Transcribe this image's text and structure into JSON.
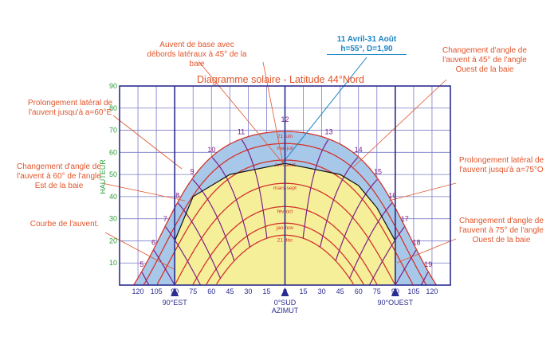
{
  "title": "Diagramme solaire - Latitude 44°Nord",
  "y_axis_label": "HAUTEUR",
  "x_axis_label": "AZIMUT",
  "y_ticks": [
    "10",
    "20",
    "30",
    "40",
    "50",
    "60",
    "70",
    "80",
    "90"
  ],
  "x_ticks": [
    "120",
    "105",
    "90",
    "75",
    "60",
    "45",
    "30",
    "15",
    "0",
    "15",
    "30",
    "45",
    "60",
    "75",
    "90",
    "105",
    "120"
  ],
  "x_markers": {
    "east": "90°EST",
    "south": "0°SUD",
    "west": "90°OUEST"
  },
  "hour_labels": [
    "5",
    "6",
    "7",
    "8",
    "9",
    "10",
    "11",
    "12",
    "13",
    "14",
    "15",
    "16",
    "17",
    "18",
    "19"
  ],
  "date_labels": [
    "21 juin",
    "mai-juil",
    "avril-août",
    "mars-sept",
    "fév-oct",
    "jan-nov",
    "21 déc"
  ],
  "callouts": {
    "base_awning": "Auvent de base avec débords latéraux à 45° de la baie",
    "april_aug": "11 Avril-31 Août",
    "april_aug_values": "h=55°, D=1,90",
    "extension_60e": "Prolongement latéral de l'auvent jusqu'à a=60°E",
    "change_60_east": "Changement d'angle de l'auvent à 60° de l'angle Est de la baie",
    "awning_curve": "Courbe de l'auvent.",
    "change_45_west": "Changement d'angle de l'auvent à 45° de l'angle Ouest de la baie",
    "extension_75o": "Prolongement latéral de l'auvent jusqu'à a=75°O",
    "change_75_west": "Changement d'angle de l'auvent à 75° de l'angle Ouest de la baie"
  },
  "colors": {
    "frame": "#2b2c8f",
    "grid": "#7b7bc8",
    "annotation": "#e2552b",
    "hour_lines": "#7a1f86",
    "date_lines": "#d2342c",
    "shaded_area": "#a8c8ea",
    "sun_area": "#f6ef9a",
    "highlight": "#1a84c4"
  },
  "chart_data": {
    "type": "sun-path diagram",
    "title": "Diagramme solaire - Latitude 44°Nord",
    "ylabel": "HAUTEUR",
    "xlabel": "AZIMUT",
    "ylim": [
      0,
      90
    ],
    "xlim": [
      -135,
      135
    ],
    "latitude": 44,
    "date_curves": [
      {
        "label": "21 juin",
        "declination": 23.44
      },
      {
        "label": "mai-juil",
        "declination": 18
      },
      {
        "label": "avril-août",
        "declination": 10.5
      },
      {
        "label": "mars-sept",
        "declination": 0
      },
      {
        "label": "fév-oct",
        "declination": -10.5
      },
      {
        "label": "jan-nov",
        "declination": -18
      },
      {
        "label": "21 déc",
        "declination": -23.44
      }
    ],
    "hours": [
      5,
      6,
      7,
      8,
      9,
      10,
      11,
      12,
      13,
      14,
      15,
      16,
      17,
      18,
      19
    ],
    "highlight": {
      "label": "11 Avril-31 Août",
      "altitude": 55,
      "D": 1.9
    },
    "awning_profile": [
      [
        -90,
        0
      ],
      [
        -90,
        20
      ],
      [
        -75,
        40
      ],
      [
        -60,
        45
      ],
      [
        -45,
        50
      ],
      [
        0,
        55
      ],
      [
        45,
        50
      ],
      [
        60,
        45
      ],
      [
        75,
        35
      ],
      [
        90,
        20
      ],
      [
        90,
        0
      ]
    ]
  }
}
